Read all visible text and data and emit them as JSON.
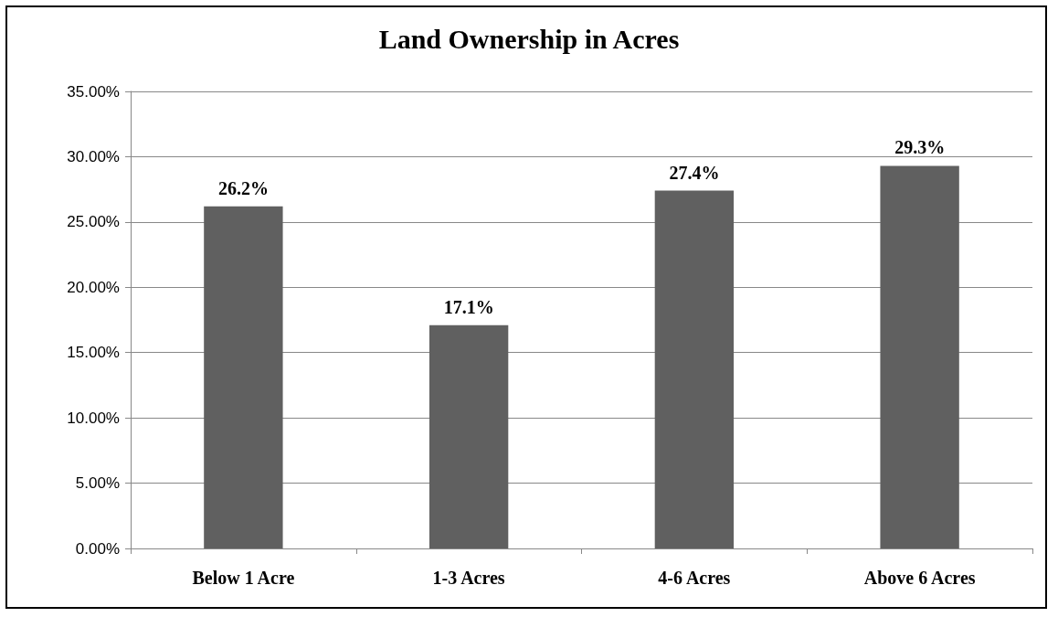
{
  "chart_data": {
    "type": "bar",
    "title": "Land Ownership in Acres",
    "categories": [
      "Below 1 Acre",
      "1-3 Acres",
      "4-6 Acres",
      "Above 6 Acres"
    ],
    "values": [
      26.2,
      17.1,
      27.4,
      29.3
    ],
    "color": "#606060",
    "value_labels": [
      "26.2%",
      "17.1%",
      "27.4%",
      "29.3%"
    ],
    "ylim": [
      0,
      35
    ],
    "yticks": [
      {
        "value": 0,
        "label": "0.00%"
      },
      {
        "value": 5,
        "label": "5.00%"
      },
      {
        "value": 10,
        "label": "10.00%"
      },
      {
        "value": 15,
        "label": "15.00%"
      },
      {
        "value": 20,
        "label": "20.00%"
      },
      {
        "value": 25,
        "label": "25.00%"
      },
      {
        "value": 30,
        "label": "30.00%"
      },
      {
        "value": 35,
        "label": "35.00%"
      }
    ],
    "grid": true
  }
}
